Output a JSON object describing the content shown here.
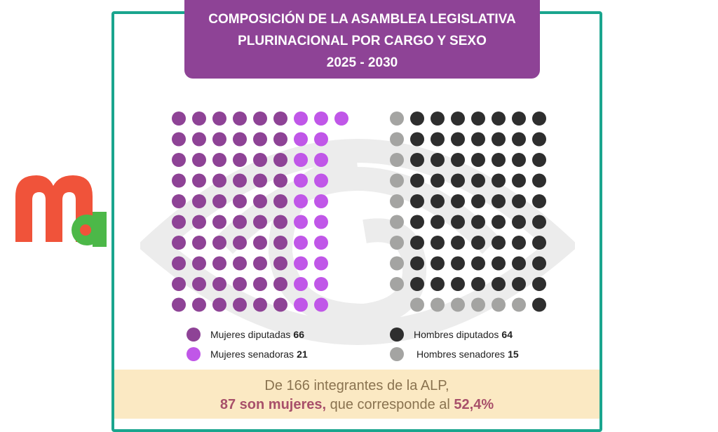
{
  "title": {
    "line1": "COMPOSICIÓN DE LA ASAMBLEA LEGISLATIVA",
    "line2": "PLURINACIONAL POR CARGO Y SEXO",
    "line3": "2025 - 2030"
  },
  "chart_data": {
    "type": "waffle",
    "title": "COMPOSICIÓN DE LA ASAMBLEA LEGISLATIVA PLURINACIONAL POR CARGO Y SEXO 2025 - 2030",
    "series": [
      {
        "name": "Mujeres diputadas",
        "value": 66,
        "color": "#8e4396"
      },
      {
        "name": "Mujeres senadoras",
        "value": 21,
        "color": "#c057e8"
      },
      {
        "name": "Hombres diputados",
        "value": 64,
        "color": "#2e2e2e"
      },
      {
        "name": "Hombres senadores",
        "value": 15,
        "color": "#a4a4a2"
      }
    ],
    "legend_placement": "bottom"
  },
  "legend": [
    {
      "label": "Mujeres diputadas",
      "value": "66"
    },
    {
      "label": "Mujeres senadoras",
      "value": "21"
    },
    {
      "label": "Hombres diputados",
      "value": "64"
    },
    {
      "label": "Hombres senadores",
      "value": "15"
    }
  ],
  "summary": {
    "line1": "De 166 integrantes de la ALP,",
    "highlight1": "87 son mujeres,",
    "middle": " que corresponde al ",
    "highlight2": "52,4%"
  },
  "logo_text": "ma",
  "colors": {
    "frame": "#1aa58e",
    "title_bg": "#8e4396",
    "band_bg": "#fbe9c3"
  }
}
